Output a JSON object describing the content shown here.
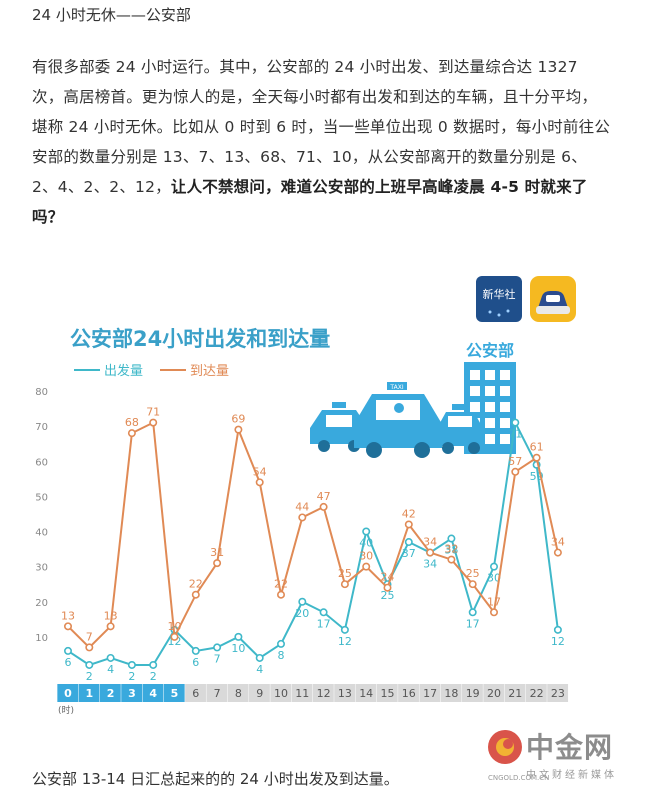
{
  "article": {
    "heading": "24 小时无休——公安部",
    "para_normal": "有很多部委 24 小时运行。其中，公安部的 24 小时出发、到达量综合达 1327 次，高居榜首。更为惊人的是，全天每小时都有出发和到达的车辆，且十分平均，堪称 24 小时无休。比如从 0 时到 6 时，当一些单位出现 0 数据时，每小时前往公安部的数量分别是 13、7、13、68、71、10，从公安部离开的数量分别是 6、2、4、2、2、12，",
    "para_bold": "让人不禁想问，难道公安部的上班早高峰凌晨 4-5 时就来了吗？",
    "caption": "公安部 13-14 日汇总起来的的 24 小时出发及到达量。"
  },
  "watermark": {
    "name": "中金网",
    "sub": "中文财经新媒体",
    "en": "CNGOLD.COM.CN"
  },
  "figure": {
    "badge_label": "新华社",
    "building_label": "公安部",
    "taxi_label": "TAXI",
    "colors": {
      "departure": "#3fb8c9",
      "arrival": "#e08a55",
      "title": "#3aa0c8",
      "blue": "#39a9dd",
      "grey": "#d9d9d9"
    }
  },
  "chart_data": {
    "type": "line",
    "title": "公安部24小时出发和到达量",
    "xlabel": "(时)",
    "ylabel": "",
    "ylim": [
      0,
      80
    ],
    "yticks": [
      10,
      20,
      30,
      40,
      50,
      60,
      70,
      80
    ],
    "grid": false,
    "legend": "top-left",
    "x": [
      "0",
      "1",
      "2",
      "3",
      "4",
      "5",
      "6",
      "7",
      "8",
      "9",
      "10",
      "11",
      "12",
      "13",
      "14",
      "15",
      "16",
      "17",
      "18",
      "19",
      "20",
      "21",
      "22",
      "23"
    ],
    "x_highlight": [
      0,
      1,
      2,
      3,
      4,
      5
    ],
    "series": [
      {
        "name": "出发量",
        "values": [
          6,
          2,
          4,
          2,
          2,
          12,
          6,
          7,
          10,
          4,
          8,
          20,
          17,
          12,
          40,
          25,
          37,
          34,
          38,
          17,
          30,
          71,
          59,
          12
        ]
      },
      {
        "name": "到达量",
        "values": [
          13,
          7,
          13,
          68,
          71,
          10,
          22,
          31,
          69,
          54,
          22,
          44,
          47,
          25,
          30,
          24,
          42,
          34,
          32,
          25,
          17,
          57,
          61,
          34
        ]
      }
    ]
  }
}
